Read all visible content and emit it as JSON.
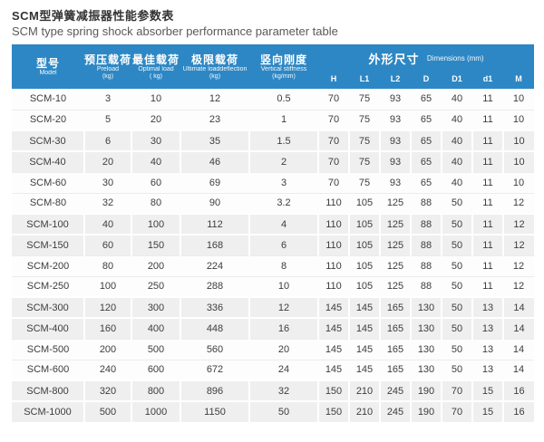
{
  "page": {
    "title_zh": "SCM型弹簧减振器性能参数表",
    "title_en": "SCM type spring shock absorber performance parameter table"
  },
  "colors": {
    "header_blue": "#2d87c4",
    "row_gray": "#efefef",
    "row_white": "#fdfdfd",
    "body_text": "#3d3d3d"
  },
  "table": {
    "columns": [
      {
        "zh": "型号",
        "en": "Model",
        "unit": ""
      },
      {
        "zh": "预压载荷",
        "en": "Preload",
        "unit": "(kg)"
      },
      {
        "zh": "最佳载荷",
        "en": "Optimal load",
        "unit": "( kg)"
      },
      {
        "zh": "极限载荷",
        "en": "Ultimate loaddeflection",
        "unit": "(kg)"
      },
      {
        "zh": "竖向刚度",
        "en": "Vertical stiffness",
        "unit": "(kg/mm)"
      }
    ],
    "dimensions_group": {
      "zh": "外形尺寸",
      "en": "Dimensions (mm)"
    },
    "dim_columns": [
      "H",
      "L1",
      "L2",
      "D",
      "D1",
      "d1",
      "M"
    ],
    "rows": [
      {
        "model": "SCM-10",
        "values": [
          "3",
          "10",
          "12",
          "0.5",
          "70",
          "75",
          "93",
          "65",
          "40",
          "11",
          "10"
        ]
      },
      {
        "model": "SCM-20",
        "values": [
          "5",
          "20",
          "23",
          "1",
          "70",
          "75",
          "93",
          "65",
          "40",
          "11",
          "10"
        ]
      },
      {
        "model": "SCM-30",
        "values": [
          "6",
          "30",
          "35",
          "1.5",
          "70",
          "75",
          "93",
          "65",
          "40",
          "11",
          "10"
        ]
      },
      {
        "model": "SCM-40",
        "values": [
          "20",
          "40",
          "46",
          "2",
          "70",
          "75",
          "93",
          "65",
          "40",
          "11",
          "10"
        ]
      },
      {
        "model": "SCM-60",
        "values": [
          "30",
          "60",
          "69",
          "3",
          "70",
          "75",
          "93",
          "65",
          "40",
          "11",
          "10"
        ]
      },
      {
        "model": "SCM-80",
        "values": [
          "32",
          "80",
          "90",
          "3.2",
          "110",
          "105",
          "125",
          "88",
          "50",
          "11",
          "12"
        ]
      },
      {
        "model": "SCM-100",
        "values": [
          "40",
          "100",
          "112",
          "4",
          "110",
          "105",
          "125",
          "88",
          "50",
          "11",
          "12"
        ]
      },
      {
        "model": "SCM-150",
        "values": [
          "60",
          "150",
          "168",
          "6",
          "110",
          "105",
          "125",
          "88",
          "50",
          "11",
          "12"
        ]
      },
      {
        "model": "SCM-200",
        "values": [
          "80",
          "200",
          "224",
          "8",
          "110",
          "105",
          "125",
          "88",
          "50",
          "11",
          "12"
        ]
      },
      {
        "model": "SCM-250",
        "values": [
          "100",
          "250",
          "288",
          "10",
          "110",
          "105",
          "125",
          "88",
          "50",
          "11",
          "12"
        ]
      },
      {
        "model": "SCM-300",
        "values": [
          "120",
          "300",
          "336",
          "12",
          "145",
          "145",
          "165",
          "130",
          "50",
          "13",
          "14"
        ]
      },
      {
        "model": "SCM-400",
        "values": [
          "160",
          "400",
          "448",
          "16",
          "145",
          "145",
          "165",
          "130",
          "50",
          "13",
          "14"
        ]
      },
      {
        "model": "SCM-500",
        "values": [
          "200",
          "500",
          "560",
          "20",
          "145",
          "145",
          "165",
          "130",
          "50",
          "13",
          "14"
        ]
      },
      {
        "model": "SCM-600",
        "values": [
          "240",
          "600",
          "672",
          "24",
          "145",
          "145",
          "165",
          "130",
          "50",
          "13",
          "14"
        ]
      },
      {
        "model": "SCM-800",
        "values": [
          "320",
          "800",
          "896",
          "32",
          "150",
          "210",
          "245",
          "190",
          "70",
          "15",
          "16"
        ]
      },
      {
        "model": "SCM-1000",
        "values": [
          "500",
          "1000",
          "1150",
          "50",
          "150",
          "210",
          "245",
          "190",
          "70",
          "15",
          "16"
        ]
      }
    ]
  }
}
